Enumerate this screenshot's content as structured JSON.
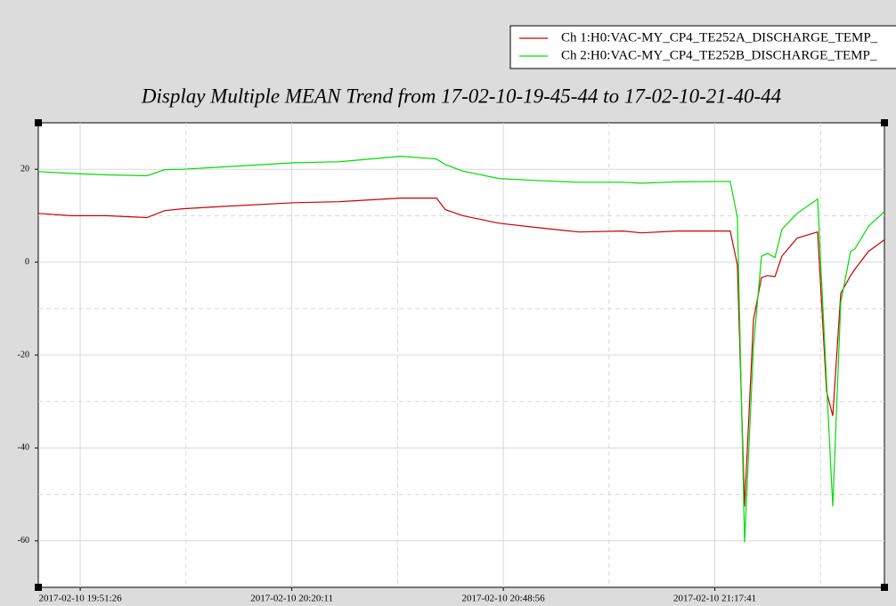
{
  "chart_data": {
    "type": "line",
    "title": "Display Multiple MEAN Trend from 17-02-10-19-45-44 to 17-02-10-21-40-44",
    "x": [
      "2017-02-10 19:45:44",
      "2017-02-10 19:50:13",
      "2017-02-10 19:55:03",
      "2017-02-10 20:00:30",
      "2017-02-10 20:02:55",
      "2017-02-10 20:05:21",
      "2017-02-10 20:10:47",
      "2017-02-10 20:20:29",
      "2017-02-10 20:26:32",
      "2017-02-10 20:35:00",
      "2017-02-10 20:39:51",
      "2017-02-10 20:41:03",
      "2017-02-10 20:43:28",
      "2017-02-10 20:48:19",
      "2017-02-10 20:53:09",
      "2017-02-10 20:59:13",
      "2017-02-10 21:05:16",
      "2017-02-10 21:07:41",
      "2017-02-10 21:12:32",
      "2017-02-10 21:19:47",
      "2017-02-10 21:20:45",
      "2017-02-10 21:21:44",
      "2017-02-10 21:22:56",
      "2017-02-10 21:24:02",
      "2017-02-10 21:24:52",
      "2017-02-10 21:25:51",
      "2017-02-10 21:26:49",
      "2017-02-10 21:28:52",
      "2017-02-10 21:31:39",
      "2017-02-10 21:32:52",
      "2017-02-10 21:33:43",
      "2017-02-10 21:34:48",
      "2017-02-10 21:36:08",
      "2017-02-10 21:36:44",
      "2017-02-10 21:38:33",
      "2017-02-10 21:40:44"
    ],
    "series": [
      {
        "name": "Ch 1:H0:VAC-MY_CP4_TE252A_DISCHARGE_TEMP_",
        "color": "#cc0000",
        "values": [
          10.5,
          10,
          10,
          9.6,
          11.1,
          11.5,
          12,
          12.8,
          13,
          13.8,
          13.8,
          11.3,
          10,
          8.4,
          7.5,
          6.5,
          6.7,
          6.3,
          6.7,
          6.7,
          -0.6,
          -52.6,
          -12.4,
          -3.3,
          -2.9,
          -3.1,
          1.3,
          5.2,
          6.5,
          -27.8,
          -33.1,
          -6.7,
          -2.9,
          -1.5,
          2.3,
          4.8
        ]
      },
      {
        "name": "Ch 2:H0:VAC-MY_CP4_TE252B_DISCHARGE_TEMP_",
        "color": "#00dd00",
        "values": [
          19.5,
          19.1,
          18.8,
          18.6,
          19.9,
          20,
          20.5,
          21.4,
          21.6,
          22.8,
          22.2,
          21,
          19.6,
          18,
          17.6,
          17.2,
          17.2,
          17,
          17.3,
          17.4,
          9.6,
          -60.3,
          -18.2,
          1.3,
          1.9,
          1,
          7.1,
          10.5,
          13.6,
          -25.8,
          -52.6,
          -8.6,
          2.3,
          2.9,
          7.7,
          10.9
        ]
      }
    ],
    "xlim": [
      "2017-02-10 19:45:44",
      "2017-02-10 21:40:44"
    ],
    "xticks": [
      "2017-02-10 19:51:26",
      "2017-02-10 20:20:11",
      "2017-02-10 20:48:56",
      "2017-02-10 21:17:41"
    ],
    "ylim": [
      -70,
      30
    ],
    "yticks": [
      -60,
      -40,
      -20,
      0,
      20
    ],
    "grid": true,
    "legend_position": "top-right"
  }
}
